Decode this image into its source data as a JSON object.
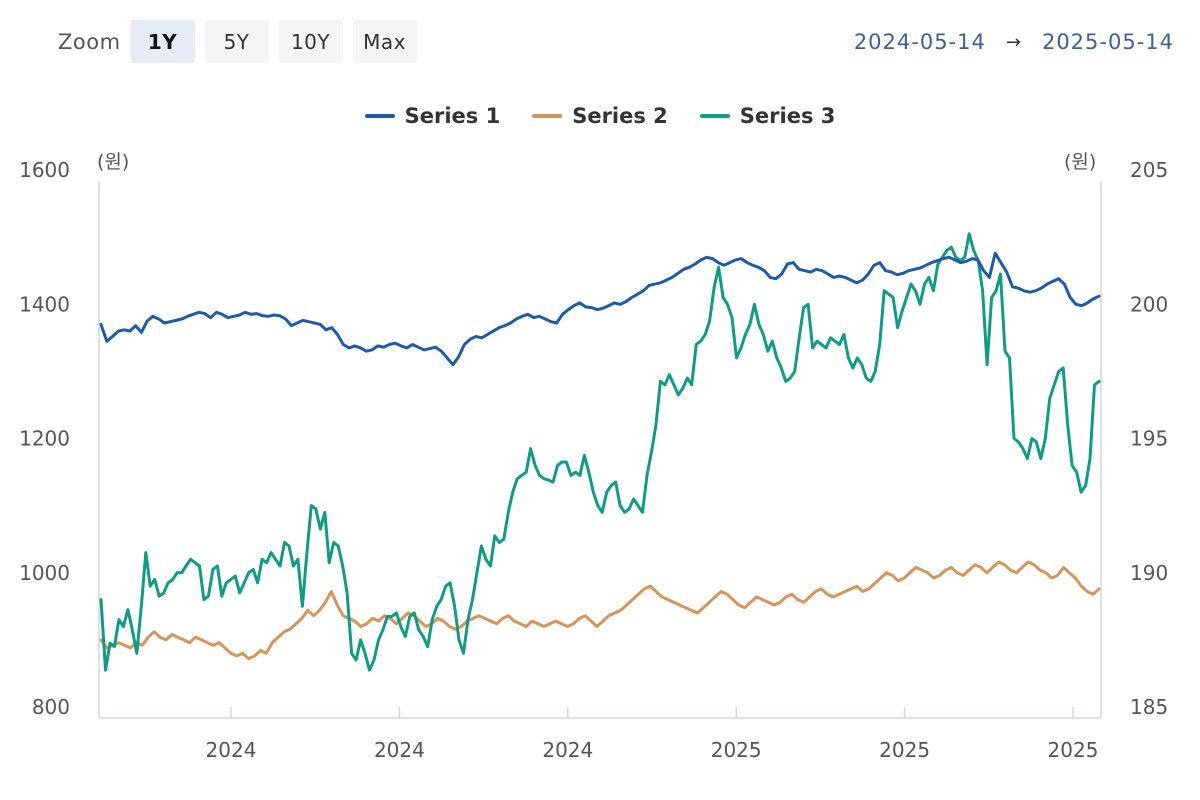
{
  "toolbar": {
    "zoom_label": "Zoom",
    "buttons": [
      {
        "label": "1Y",
        "active": true
      },
      {
        "label": "5Y",
        "active": false
      },
      {
        "label": "10Y",
        "active": false
      },
      {
        "label": "Max",
        "active": false
      }
    ]
  },
  "date_range": {
    "from": "2024-05-14",
    "arrow": "→",
    "to": "2025-05-14"
  },
  "colors": {
    "series1": "#1f5aa6",
    "series2": "#d4955a",
    "series3": "#119a84",
    "axis": "#cfd6e6"
  },
  "chart_data": {
    "type": "line",
    "x_tick_labels": [
      "2024",
      "2024",
      "2024",
      "2025",
      "2025",
      "2025"
    ],
    "left_axis": {
      "unit": "(원)",
      "ylim": [
        800,
        1600
      ],
      "ticks": [
        800,
        1000,
        1200,
        1400,
        1600
      ]
    },
    "right_axis": {
      "unit": "(원)",
      "ylim": [
        185,
        205
      ],
      "ticks": [
        185,
        190,
        195,
        200,
        205
      ]
    },
    "legend_position": "top-center",
    "grid": false,
    "series": [
      {
        "name": "Series 1",
        "axis": "left",
        "color": "#1f5aa6",
        "values": [
          1370,
          1345,
          1352,
          1360,
          1362,
          1360,
          1368,
          1358,
          1375,
          1382,
          1378,
          1372,
          1374,
          1376,
          1378,
          1382,
          1385,
          1388,
          1386,
          1380,
          1388,
          1385,
          1380,
          1382,
          1384,
          1388,
          1385,
          1386,
          1383,
          1382,
          1384,
          1383,
          1378,
          1368,
          1372,
          1376,
          1374,
          1372,
          1370,
          1362,
          1365,
          1355,
          1340,
          1335,
          1338,
          1335,
          1330,
          1332,
          1338,
          1336,
          1340,
          1342,
          1338,
          1335,
          1340,
          1336,
          1332,
          1334,
          1336,
          1330,
          1320,
          1310,
          1322,
          1340,
          1348,
          1352,
          1350,
          1355,
          1360,
          1365,
          1368,
          1372,
          1378,
          1382,
          1385,
          1380,
          1382,
          1378,
          1374,
          1372,
          1385,
          1392,
          1398,
          1402,
          1396,
          1395,
          1392,
          1394,
          1398,
          1402,
          1400,
          1404,
          1410,
          1415,
          1420,
          1428,
          1430,
          1432,
          1436,
          1440,
          1446,
          1452,
          1455,
          1460,
          1466,
          1470,
          1468,
          1462,
          1458,
          1462,
          1466,
          1468,
          1462,
          1458,
          1455,
          1450,
          1440,
          1438,
          1445,
          1460,
          1462,
          1452,
          1450,
          1448,
          1452,
          1450,
          1445,
          1440,
          1442,
          1440,
          1436,
          1432,
          1436,
          1445,
          1458,
          1462,
          1450,
          1448,
          1444,
          1446,
          1450,
          1452,
          1454,
          1458,
          1462,
          1465,
          1468,
          1470,
          1466,
          1462,
          1464,
          1468,
          1466,
          1450,
          1440,
          1476,
          1462,
          1448,
          1426,
          1424,
          1420,
          1418,
          1420,
          1424,
          1430,
          1434,
          1438,
          1430,
          1410,
          1400,
          1398,
          1402,
          1408,
          1412
        ]
      },
      {
        "name": "Series 2",
        "axis": "right",
        "color": "#d4955a",
        "values": [
          187.5,
          187.2,
          187.3,
          187.4,
          187.3,
          187.2,
          187.4,
          187.3,
          187.6,
          187.8,
          187.6,
          187.5,
          187.7,
          187.6,
          187.5,
          187.4,
          187.6,
          187.5,
          187.4,
          187.3,
          187.4,
          187.2,
          187.0,
          186.9,
          187.0,
          186.8,
          186.9,
          187.1,
          187.0,
          187.4,
          187.6,
          187.8,
          187.9,
          188.1,
          188.3,
          188.6,
          188.4,
          188.6,
          188.9,
          189.3,
          188.8,
          188.4,
          188.3,
          188.2,
          188.0,
          188.1,
          188.3,
          188.2,
          188.4,
          188.3,
          188.1,
          188.3,
          188.5,
          188.4,
          188.2,
          188.0,
          188.1,
          188.3,
          188.2,
          188.0,
          187.9,
          188.0,
          188.2,
          188.3,
          188.4,
          188.3,
          188.2,
          188.1,
          188.3,
          188.4,
          188.2,
          188.1,
          188.0,
          188.2,
          188.1,
          188.0,
          188.1,
          188.2,
          188.1,
          188.0,
          188.1,
          188.3,
          188.4,
          188.2,
          188.0,
          188.2,
          188.4,
          188.5,
          188.6,
          188.8,
          189.0,
          189.2,
          189.4,
          189.5,
          189.3,
          189.1,
          189.0,
          188.9,
          188.8,
          188.7,
          188.6,
          188.5,
          188.7,
          188.9,
          189.1,
          189.3,
          189.2,
          189.0,
          188.8,
          188.7,
          188.9,
          189.1,
          189.0,
          188.9,
          188.8,
          188.9,
          189.1,
          189.2,
          189.0,
          188.9,
          189.1,
          189.3,
          189.4,
          189.2,
          189.1,
          189.2,
          189.3,
          189.4,
          189.5,
          189.3,
          189.4,
          189.6,
          189.8,
          190.0,
          189.9,
          189.7,
          189.8,
          190.0,
          190.2,
          190.1,
          190.0,
          189.8,
          189.9,
          190.1,
          190.2,
          190.0,
          189.9,
          190.1,
          190.3,
          190.2,
          190.0,
          190.2,
          190.4,
          190.3,
          190.1,
          190.0,
          190.2,
          190.4,
          190.3,
          190.1,
          190.0,
          189.8,
          189.9,
          190.2,
          190.0,
          189.8,
          189.5,
          189.3,
          189.2,
          189.4
        ]
      },
      {
        "name": "Series 3",
        "axis": "left",
        "color": "#119a84",
        "values": [
          960,
          855,
          895,
          890,
          930,
          920,
          945,
          915,
          880,
          950,
          1030,
          980,
          990,
          965,
          970,
          985,
          990,
          1000,
          1000,
          1010,
          1020,
          1015,
          1010,
          960,
          965,
          1005,
          1010,
          965,
          985,
          990,
          995,
          970,
          985,
          1000,
          1005,
          985,
          1020,
          1015,
          1030,
          1020,
          1010,
          1045,
          1040,
          1010,
          1020,
          950,
          1030,
          1100,
          1095,
          1065,
          1090,
          1015,
          1045,
          1040,
          1010,
          970,
          880,
          870,
          900,
          880,
          855,
          870,
          900,
          915,
          935,
          935,
          940,
          920,
          905,
          935,
          940,
          915,
          905,
          890,
          930,
          950,
          960,
          980,
          985,
          950,
          900,
          880,
          930,
          960,
          1000,
          1040,
          1020,
          1010,
          1055,
          1045,
          1050,
          1090,
          1120,
          1140,
          1145,
          1150,
          1185,
          1160,
          1145,
          1140,
          1138,
          1135,
          1160,
          1165,
          1165,
          1145,
          1150,
          1145,
          1175,
          1150,
          1120,
          1100,
          1090,
          1120,
          1130,
          1135,
          1100,
          1090,
          1095,
          1110,
          1100,
          1090,
          1145,
          1180,
          1220,
          1285,
          1280,
          1295,
          1280,
          1265,
          1275,
          1290,
          1280,
          1340,
          1345,
          1355,
          1375,
          1425,
          1455,
          1410,
          1400,
          1380,
          1320,
          1335,
          1355,
          1370,
          1400,
          1370,
          1355,
          1330,
          1345,
          1320,
          1305,
          1285,
          1290,
          1300,
          1350,
          1395,
          1400,
          1335,
          1345,
          1340,
          1335,
          1350,
          1345,
          1340,
          1355,
          1320,
          1305,
          1320,
          1310,
          1290,
          1285,
          1300,
          1340,
          1420,
          1415,
          1410,
          1365,
          1390,
          1410,
          1430,
          1420,
          1400,
          1430,
          1440,
          1420,
          1460,
          1470,
          1480,
          1485,
          1470,
          1465,
          1470,
          1505,
          1480,
          1465,
          1420,
          1310,
          1410,
          1420,
          1445,
          1330,
          1320,
          1200,
          1195,
          1185,
          1170,
          1200,
          1195,
          1170,
          1200,
          1260,
          1280,
          1300,
          1305,
          1220,
          1160,
          1150,
          1120,
          1130,
          1170,
          1280,
          1285
        ]
      }
    ]
  }
}
